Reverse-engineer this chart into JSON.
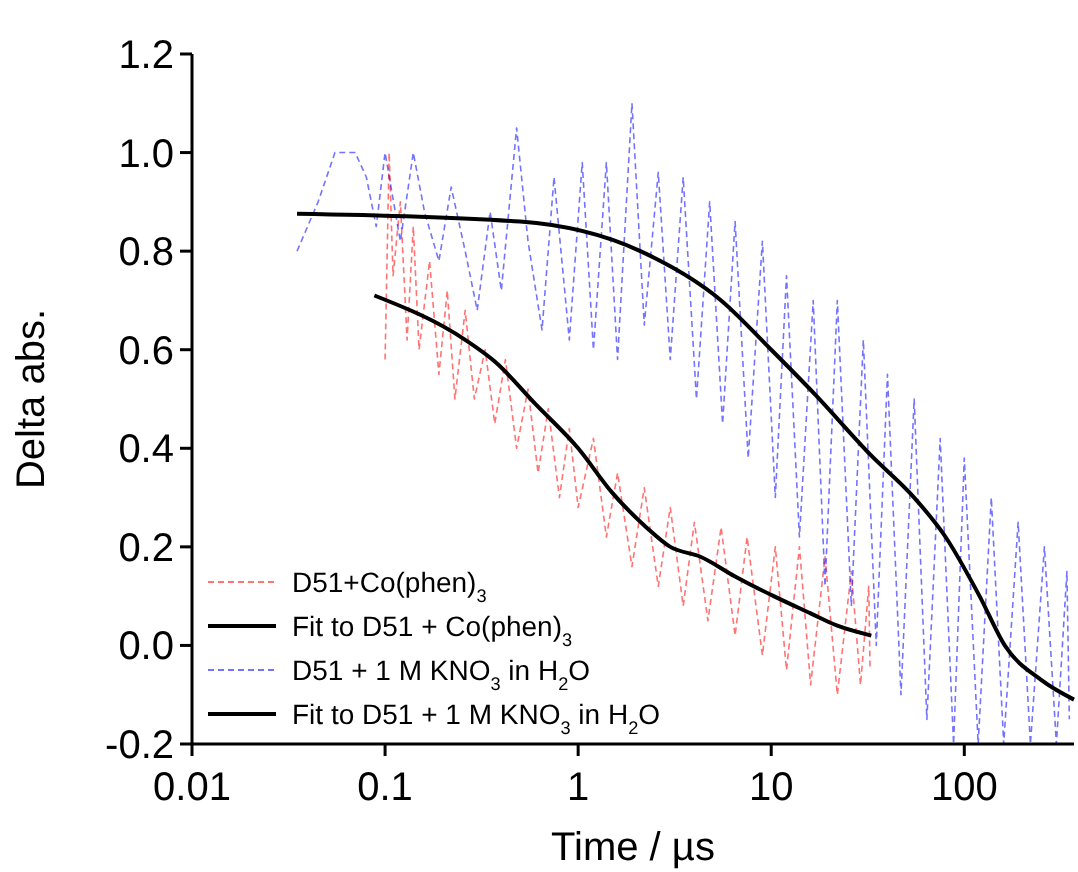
{
  "chart_data": {
    "type": "line",
    "xlabel": "Time / µs",
    "ylabel": "Delta abs.",
    "log": "x",
    "xlim": [
      0.01,
      370
    ],
    "xticks": [
      0.01,
      0.1,
      1,
      10,
      100
    ],
    "ylim": [
      -0.2,
      1.2
    ],
    "yticks": [
      {
        "value": -0.2,
        "label": "-0.2"
      },
      {
        "value": 0,
        "label": "0.0"
      },
      {
        "value": 0.2,
        "label": "0.2"
      },
      {
        "value": 0.4,
        "label": "0.4"
      },
      {
        "value": 0.6,
        "label": "0.6"
      },
      {
        "value": 0.8,
        "label": "0.8"
      },
      {
        "value": 1,
        "label": "1.0"
      },
      {
        "value": 1.2,
        "label": "1.2"
      }
    ],
    "grid": false,
    "legend": "bottom left",
    "series": [
      {
        "name": "D51+Co(phen)$_{3}$",
        "color": "#ff0000",
        "line_style": "dashed",
        "x": [
          0.1,
          0.105,
          0.11,
          0.12,
          0.13,
          0.14,
          0.15,
          0.17,
          0.19,
          0.21,
          0.23,
          0.26,
          0.29,
          0.33,
          0.37,
          0.42,
          0.48,
          0.55,
          0.62,
          0.7,
          0.8,
          0.9,
          1,
          1.2,
          1.4,
          1.6,
          1.9,
          2.2,
          2.6,
          3,
          3.5,
          4,
          4.7,
          5.5,
          6.5,
          7.5,
          9,
          10.5,
          12,
          14,
          16,
          19,
          22,
          26,
          29,
          32,
          32.5
        ],
        "values": [
          0.58,
          1.0,
          0.75,
          0.9,
          0.62,
          0.85,
          0.6,
          0.78,
          0.55,
          0.72,
          0.5,
          0.68,
          0.5,
          0.6,
          0.45,
          0.58,
          0.4,
          0.52,
          0.35,
          0.48,
          0.3,
          0.44,
          0.28,
          0.42,
          0.22,
          0.35,
          0.16,
          0.32,
          0.12,
          0.28,
          0.08,
          0.25,
          0.05,
          0.24,
          0.02,
          0.22,
          -0.02,
          0.2,
          -0.05,
          0.2,
          -0.08,
          0.18,
          -0.1,
          0.15,
          -0.08,
          0.12,
          -0.05
        ]
      },
      {
        "name": "Fit to D51 + Co(phen)$_{3}$",
        "color": "#000000",
        "line_style": "solid",
        "x": [
          0.088,
          0.26,
          0.37,
          0.6,
          1,
          1.5,
          2.25,
          3,
          4.3,
          6.5,
          10.3,
          16,
          22,
          33
        ],
        "values": [
          0.71,
          0.62,
          0.576,
          0.49,
          0.4,
          0.31,
          0.24,
          0.2,
          0.18,
          0.14,
          0.1,
          0.065,
          0.04,
          0.02
        ]
      },
      {
        "name": "D51 + 1 M KNO$_{3}$ in H$_{2}$O",
        "color": "#0000ff",
        "line_style": "dashed",
        "x": [
          0.035,
          0.045,
          0.055,
          0.07,
          0.08,
          0.09,
          0.1,
          0.12,
          0.14,
          0.16,
          0.19,
          0.22,
          0.26,
          0.3,
          0.35,
          0.4,
          0.48,
          0.55,
          0.65,
          0.75,
          0.9,
          1.05,
          1.2,
          1.4,
          1.6,
          1.9,
          2.2,
          2.6,
          3,
          3.5,
          4.1,
          4.8,
          5.6,
          6.5,
          7.6,
          9,
          10.5,
          12,
          14,
          16.5,
          19,
          22,
          26,
          30,
          35,
          40,
          47,
          55,
          64,
          75,
          88,
          100,
          118,
          138,
          160,
          190,
          220,
          260,
          300,
          340,
          350
        ],
        "values": [
          0.8,
          0.9,
          1.0,
          1.0,
          0.95,
          0.85,
          1.0,
          0.82,
          1.0,
          0.88,
          0.78,
          0.93,
          0.8,
          0.68,
          0.88,
          0.72,
          1.05,
          0.82,
          0.64,
          0.95,
          0.62,
          0.98,
          0.6,
          0.98,
          0.58,
          1.1,
          0.65,
          0.96,
          0.58,
          0.95,
          0.5,
          0.9,
          0.45,
          0.86,
          0.38,
          0.82,
          0.3,
          0.75,
          0.22,
          0.7,
          0.12,
          0.7,
          0.08,
          0.62,
          0.0,
          0.55,
          -0.1,
          0.5,
          -0.15,
          0.42,
          -0.2,
          0.38,
          -0.2,
          0.3,
          -0.2,
          0.25,
          -0.2,
          0.2,
          -0.2,
          0.15,
          -0.15
        ]
      },
      {
        "name": "Fit to D51 + 1 M KNO$_{3}$ in H$_{2}$O",
        "color": "#000000",
        "line_style": "solid",
        "x": [
          0.035,
          0.5,
          2.1,
          5.5,
          10,
          16.8,
          33,
          55,
          80,
          120,
          162,
          250,
          370
        ],
        "values": [
          0.876,
          0.86,
          0.8,
          0.7,
          0.6,
          0.51,
          0.385,
          0.3,
          0.22,
          0.1,
          0.0,
          -0.07,
          -0.11
        ]
      }
    ]
  }
}
